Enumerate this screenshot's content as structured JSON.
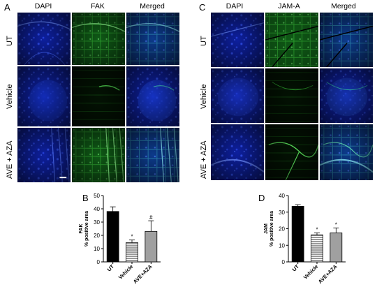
{
  "panels": {
    "A": {
      "label": "A",
      "columns": [
        "DAPI",
        "FAK",
        "Merged"
      ],
      "rows": [
        "UT",
        "Vehicle",
        "AVE + AZA"
      ]
    },
    "C": {
      "label": "C",
      "columns": [
        "DAPI",
        "JAM-A",
        "Merged"
      ],
      "rows": [
        "UT",
        "Vehicle",
        "AVE + AZA"
      ]
    },
    "B": {
      "label": "B"
    },
    "D": {
      "label": "D"
    }
  },
  "colors": {
    "dapi": "#1a3bd6",
    "green": "#2db82d",
    "merged": "#1f8ab0",
    "bar_ut": "#000000",
    "bar_ave": "#a0a0a0"
  },
  "chart_data": [
    {
      "type": "bar",
      "panel": "B",
      "categories": [
        "UT",
        "Vehicle",
        "AVE+AZA"
      ],
      "values": [
        38,
        14.5,
        23
      ],
      "errors": [
        3.5,
        2,
        8
      ],
      "annotations": [
        "",
        "*",
        "#"
      ],
      "ylabel_line1": "FAK",
      "ylabel_line2": "% positive area",
      "ylim": [
        0,
        50
      ],
      "yticks": [
        0,
        10,
        20,
        30,
        40,
        50
      ]
    },
    {
      "type": "bar",
      "panel": "D",
      "categories": [
        "UT",
        "Vehicle",
        "AVE+AZA"
      ],
      "values": [
        33.5,
        16.3,
        17.5
      ],
      "errors": [
        1,
        1.2,
        3
      ],
      "annotations": [
        "",
        "*",
        "*"
      ],
      "ylabel_line1": "JAM",
      "ylabel_line2": "% positive area",
      "ylim": [
        0,
        40
      ],
      "yticks": [
        0,
        10,
        20,
        30,
        40
      ]
    }
  ]
}
